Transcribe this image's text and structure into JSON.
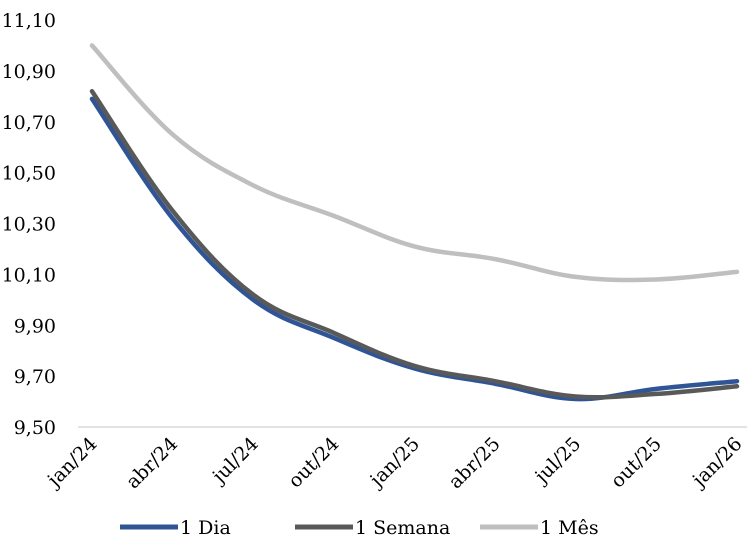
{
  "chart_data": {
    "type": "line",
    "title": "",
    "xlabel": "",
    "ylabel": "",
    "categories": [
      "jan/24",
      "abr/24",
      "jul/24",
      "out/24",
      "jan/25",
      "abr/25",
      "jul/25",
      "out/25",
      "jan/26"
    ],
    "ylim": [
      9.5,
      11.1
    ],
    "y_ticks": [
      "9,50",
      "9,70",
      "9,90",
      "10,10",
      "10,30",
      "10,50",
      "10,70",
      "10,90",
      "11,10"
    ],
    "grid": false,
    "legend_position": "bottom",
    "series": [
      {
        "name": "1 Dia",
        "color": "#2F5597",
        "values": [
          10.79,
          10.32,
          10.0,
          9.85,
          9.73,
          9.67,
          9.61,
          9.65,
          9.68
        ]
      },
      {
        "name": "1 Semana",
        "color": "#595959",
        "values": [
          10.82,
          10.35,
          10.02,
          9.87,
          9.74,
          9.68,
          9.62,
          9.63,
          9.66
        ]
      },
      {
        "name": "1 Mês",
        "color": "#BFBFBF",
        "values": [
          11.0,
          10.65,
          10.45,
          10.33,
          10.21,
          10.16,
          10.09,
          10.08,
          10.11
        ]
      }
    ]
  }
}
